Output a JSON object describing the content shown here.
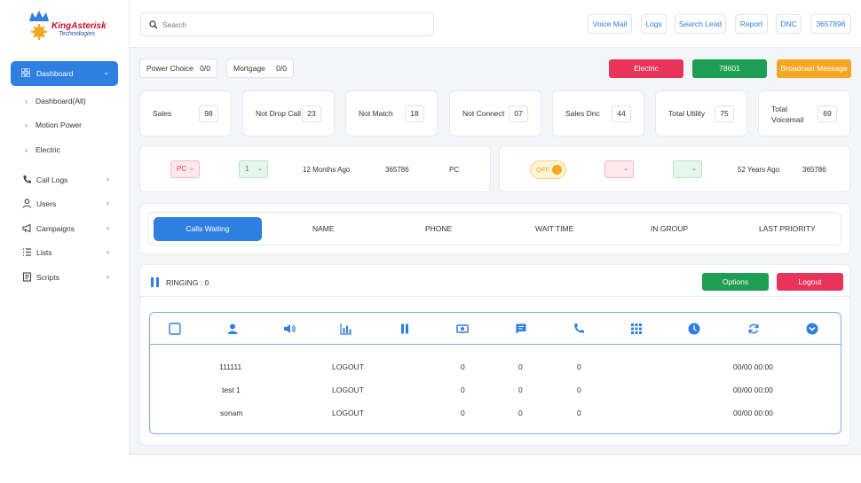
{
  "brand": {
    "name": "KingAsterisk",
    "subtitle": "Technologies"
  },
  "sidebar": {
    "active": {
      "label": "Dashboard",
      "icon": "grid-icon"
    },
    "subitems": [
      {
        "label": "Dashboard(All)"
      },
      {
        "label": "Motion Power"
      },
      {
        "label": "Electric"
      }
    ],
    "items": [
      {
        "label": "Call Logs",
        "icon": "phone-icon"
      },
      {
        "label": "Users",
        "icon": "user-icon"
      },
      {
        "label": "Campaigns",
        "icon": "megaphone-icon"
      },
      {
        "label": "Lists",
        "icon": "list-icon"
      },
      {
        "label": "Scripts",
        "icon": "script-icon"
      }
    ]
  },
  "topbar": {
    "search_placeholder": "Search",
    "links": [
      "Voice Mail",
      "Logs",
      "Search Lead",
      "Report",
      "DNC",
      "3657896"
    ]
  },
  "pills": [
    {
      "label": "Power Choice",
      "value": "0/0"
    },
    {
      "label": "Mortgage",
      "value": "0/0"
    }
  ],
  "actions": {
    "electric": "Electric",
    "number": "78601",
    "broadcast": "Broadcast Massage"
  },
  "colors": {
    "primary": "#2f7fe0",
    "danger": "#e8345a",
    "success": "#1e9e52",
    "warning": "#f5a623"
  },
  "stats": [
    {
      "label": "Sales",
      "value": "98"
    },
    {
      "label": "Not Drop Call",
      "value": "23"
    },
    {
      "label": "Not Match",
      "value": "18"
    },
    {
      "label": "Not Connect",
      "value": "07"
    },
    {
      "label": "Sales Dnc",
      "value": "44"
    },
    {
      "label": "Total Utility",
      "value": "75"
    },
    {
      "label": "Total Voicemail",
      "value": "69"
    }
  ],
  "status_left": {
    "code": "PC",
    "count": "1",
    "time": "12 Months Ago",
    "number": "365786",
    "code2": "PC"
  },
  "status_right": {
    "toggle": "OFF",
    "time": "52 Years Ago",
    "number": "365786"
  },
  "tabs": {
    "active": "Calls Waiting",
    "columns": [
      "NAME",
      "PHONE",
      "WAIT TIME",
      "IN GROUP",
      "LAST PRIORITY"
    ]
  },
  "ringing": {
    "label": "RINGING : 0",
    "options": "Options",
    "logout": "Logout"
  },
  "agents": [
    {
      "name": "111111",
      "status": "LOGOUT",
      "a": "0",
      "b": "0",
      "c": "0",
      "time": "00/00 00:00"
    },
    {
      "name": "test 1",
      "status": "LOGOUT",
      "a": "0",
      "b": "0",
      "c": "0",
      "time": "00/00 00:00"
    },
    {
      "name": "sonam",
      "status": "LOGOUT",
      "a": "0",
      "b": "0",
      "c": "0",
      "time": "00/00 00:00"
    }
  ]
}
